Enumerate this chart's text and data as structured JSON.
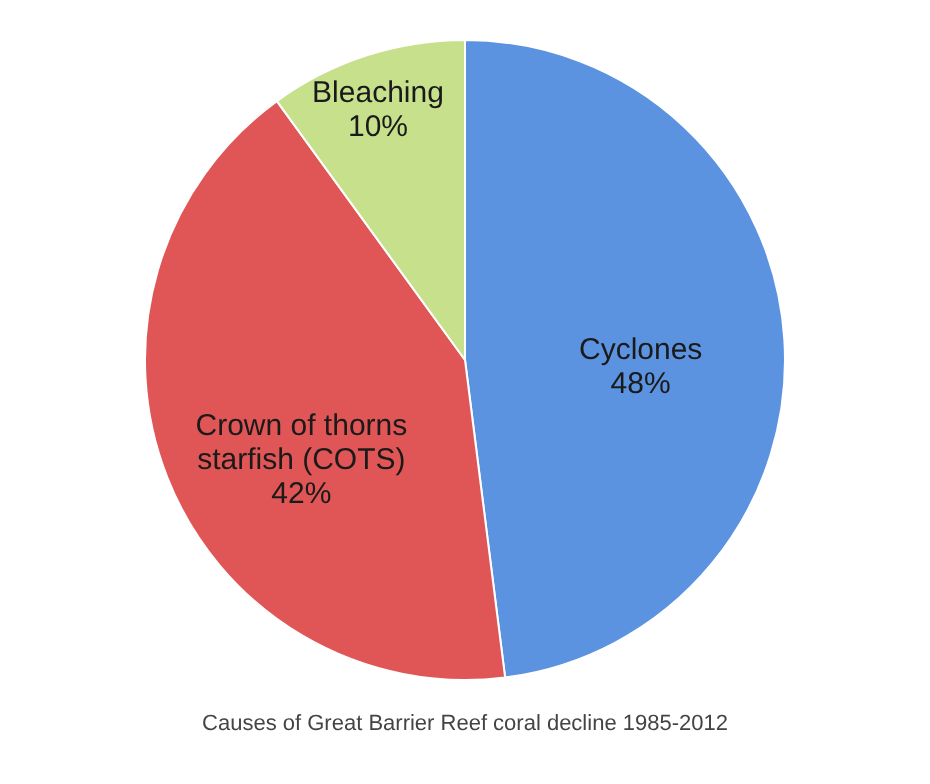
{
  "chart_data": {
    "type": "pie",
    "categories": [
      "Cyclones",
      "Crown of thorns starfish (COTS)",
      "Bleaching"
    ],
    "values": [
      48,
      42,
      10
    ],
    "value_labels": [
      "48%",
      "42%",
      "10%"
    ],
    "colors": [
      "#5b93e0",
      "#e05656",
      "#c6e08c"
    ],
    "annotations": [
      "Causes of Great Barrier Reef coral decline 1985-2012"
    ],
    "legend": false
  }
}
